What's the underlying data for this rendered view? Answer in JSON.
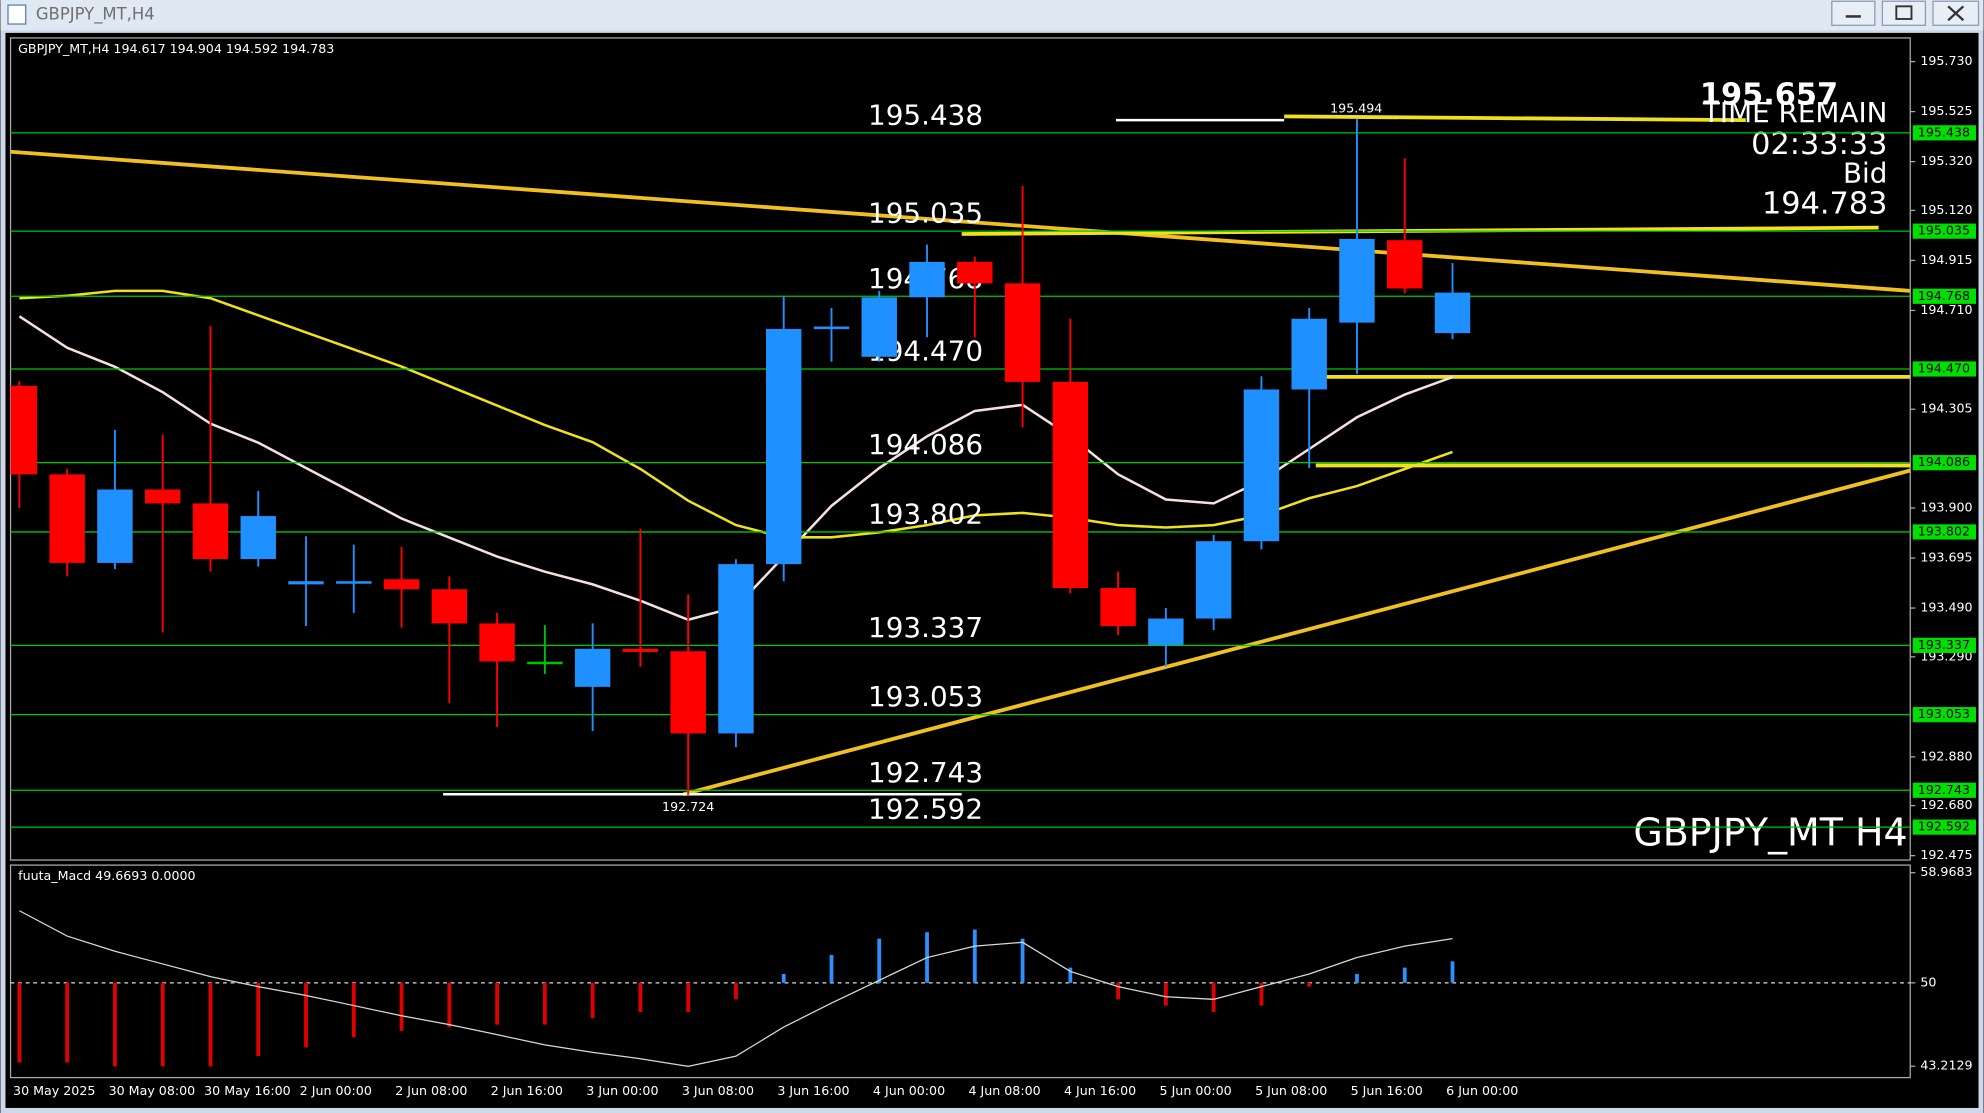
{
  "window": {
    "title": "GBPJPY_MT,H4"
  },
  "chart_data": [
    {
      "type": "candlestick",
      "info": "GBPJPY_MT,H4  194.617 194.904 194.592 194.783",
      "watermark": "GBPJPY_MT H4",
      "info_panel": [
        "195.657",
        "TIME REMAIN",
        "02:33:33",
        "Bid",
        "194.783"
      ],
      "categories": [
        "30 May 2025",
        null,
        "30 May 08:00",
        null,
        "30 May 16:00",
        null,
        "2 Jun 00:00",
        null,
        "2 Jun 08:00",
        null,
        "2 Jun 16:00",
        null,
        "3 Jun 00:00",
        null,
        "3 Jun 08:00",
        null,
        "3 Jun 16:00",
        null,
        "4 Jun 00:00",
        null,
        "4 Jun 08:00",
        null,
        "4 Jun 16:00",
        null,
        "5 Jun 00:00",
        null,
        "5 Jun 08:00",
        null,
        "5 Jun 16:00",
        null,
        "6 Jun 00:00"
      ],
      "open": [
        194.401,
        194.038,
        193.675,
        193.976,
        193.919,
        193.691,
        193.587,
        193.59,
        193.608,
        193.567,
        193.427,
        193.27,
        193.167,
        193.323,
        193.313,
        192.976,
        193.67,
        194.634,
        194.52,
        194.764,
        194.909,
        194.821,
        194.417,
        193.572,
        193.338,
        193.447,
        193.764,
        194.386,
        194.66,
        194.998,
        194.617
      ],
      "high": [
        194.42,
        194.06,
        194.22,
        194.2,
        194.645,
        193.97,
        193.784,
        193.75,
        193.74,
        193.62,
        193.47,
        193.42,
        193.427,
        193.815,
        193.546,
        193.69,
        194.77,
        194.72,
        194.79,
        194.98,
        194.93,
        195.22,
        194.676,
        193.64,
        193.49,
        193.79,
        194.44,
        194.72,
        195.494,
        195.334,
        194.904
      ],
      "low": [
        193.9,
        193.62,
        193.65,
        193.39,
        193.64,
        193.66,
        193.416,
        193.47,
        193.41,
        193.1,
        193.002,
        193.22,
        192.986,
        193.25,
        192.724,
        192.92,
        193.6,
        194.5,
        194.5,
        194.6,
        194.6,
        194.23,
        193.55,
        193.38,
        193.25,
        193.4,
        193.73,
        194.064,
        194.45,
        194.78,
        194.592
      ],
      "close": [
        194.038,
        193.675,
        193.976,
        193.919,
        193.691,
        193.867,
        193.6,
        193.6,
        193.567,
        193.427,
        193.271,
        193.27,
        193.323,
        193.31,
        192.976,
        193.67,
        194.634,
        194.644,
        194.764,
        194.909,
        194.821,
        194.417,
        193.572,
        193.416,
        193.447,
        193.764,
        194.386,
        194.676,
        195.003,
        194.8,
        194.783
      ],
      "up_color": "#1e90ff",
      "down_color": "#ff0000",
      "doji_color": "#00c000",
      "high_mark": 195.494,
      "low_mark": 192.724,
      "series": [
        {
          "color": "#f5e0dc",
          "values": [
            194.686,
            194.557,
            194.479,
            194.375,
            194.246,
            194.168,
            194.064,
            193.961,
            193.857,
            193.779,
            193.701,
            193.639,
            193.587,
            193.52,
            193.442,
            193.494,
            193.701,
            193.909,
            194.064,
            194.194,
            194.298,
            194.323,
            194.194,
            194.038,
            193.935,
            193.919,
            194.012,
            194.142,
            194.272,
            194.365,
            194.437
          ]
        },
        {
          "color": "#f0e020",
          "values": [
            194.76,
            194.77,
            194.79,
            194.79,
            194.76,
            194.69,
            194.62,
            194.55,
            194.48,
            194.4,
            194.32,
            194.24,
            194.17,
            194.06,
            193.93,
            193.83,
            193.78,
            193.78,
            193.8,
            193.83,
            193.87,
            193.88,
            193.86,
            193.83,
            193.82,
            193.83,
            193.87,
            193.94,
            193.99,
            194.06,
            194.13
          ]
        }
      ],
      "levels": [
        195.438,
        195.035,
        194.768,
        {
          "value": 194.47,
          "label": "194.470"
        },
        194.086,
        193.802,
        193.337,
        193.053,
        192.743,
        192.592
      ],
      "level_color": "#00c800",
      "ylim": [
        192.457,
        195.827
      ],
      "yticks": [
        {
          "value": 195.73,
          "label": "195.730"
        },
        195.525,
        {
          "value": 195.32,
          "label": "195.320"
        },
        {
          "value": 195.12,
          "label": "195.120"
        },
        194.915,
        {
          "value": 194.71,
          "label": "194.710"
        },
        194.305,
        {
          "value": 193.9,
          "label": "193.900"
        },
        193.695,
        {
          "value": 193.49,
          "label": "193.490"
        },
        {
          "value": 193.29,
          "label": "193.290"
        },
        {
          "value": 192.88,
          "label": "192.880"
        },
        {
          "value": 192.68,
          "label": "192.680"
        },
        192.475
      ]
    },
    {
      "type": "macd",
      "label": "fuuta_Macd 49.6693  0.0000",
      "baseline": 50,
      "values": [
        43.51,
        43.51,
        43.2,
        43.2,
        43.2,
        44.03,
        44.75,
        45.57,
        46.09,
        46.4,
        46.6,
        46.6,
        47.12,
        47.63,
        47.63,
        48.66,
        50.72,
        52.27,
        53.6,
        54.12,
        54.33,
        53.6,
        51.24,
        48.66,
        48.15,
        47.63,
        48.15,
        49.69,
        50.72,
        51.24,
        51.75
      ],
      "up_color": "#2e8fff",
      "down_color": "#e00000",
      "series": [
        {
          "color": "#d8d8d8",
          "values": [
            55.87,
            53.81,
            52.57,
            51.54,
            50.51,
            49.69,
            48.97,
            48.15,
            47.32,
            46.6,
            45.78,
            44.95,
            44.34,
            43.82,
            43.2,
            44.03,
            46.4,
            48.35,
            50.21,
            52.06,
            52.99,
            53.3,
            50.93,
            49.69,
            48.87,
            48.66,
            49.69,
            50.72,
            52.06,
            52.99,
            53.6
          ]
        }
      ],
      "ylim": [
        43.2129,
        58.9683
      ],
      "yticks": [
        58.9683,
        50,
        43.2129
      ]
    }
  ]
}
